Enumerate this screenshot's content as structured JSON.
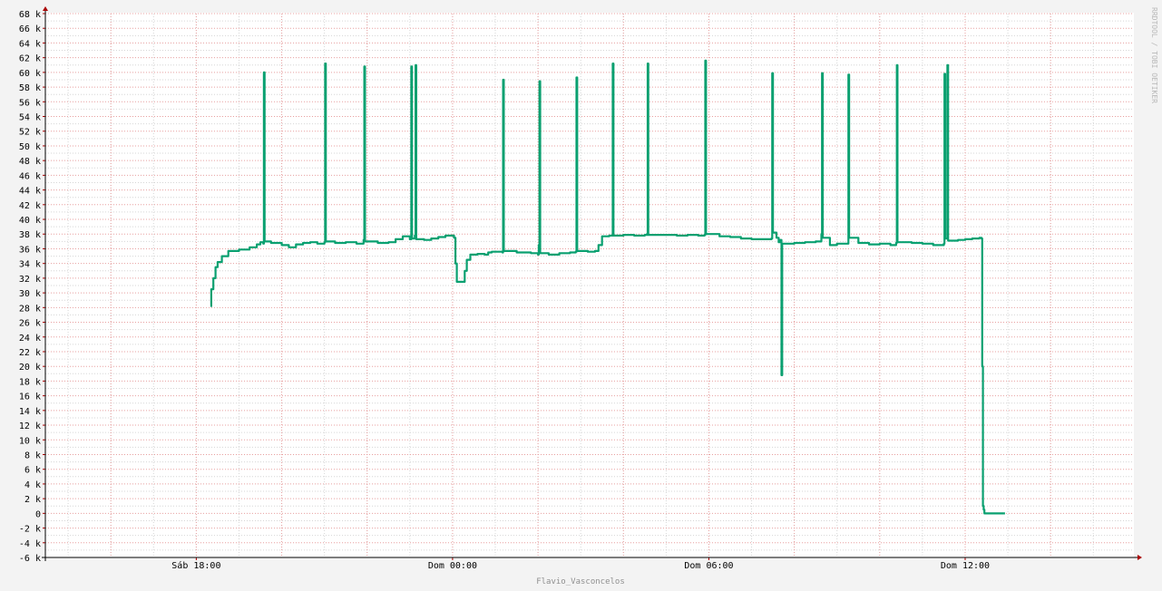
{
  "chart_data": {
    "type": "line",
    "watermark": "RRDTOOL / TOBI OETIKER",
    "footer": "Flavio_Vasconcelos",
    "ylim": [
      -6000,
      68000
    ],
    "yticks": [
      {
        "value": -6000,
        "label": "-6 k"
      },
      {
        "value": -4000,
        "label": "-4 k"
      },
      {
        "value": -2000,
        "label": "-2 k"
      },
      {
        "value": 0,
        "label": "0"
      },
      {
        "value": 2000,
        "label": "2 k"
      },
      {
        "value": 4000,
        "label": "4 k"
      },
      {
        "value": 6000,
        "label": "6 k"
      },
      {
        "value": 8000,
        "label": "8 k"
      },
      {
        "value": 10000,
        "label": "10 k"
      },
      {
        "value": 12000,
        "label": "12 k"
      },
      {
        "value": 14000,
        "label": "14 k"
      },
      {
        "value": 16000,
        "label": "16 k"
      },
      {
        "value": 18000,
        "label": "18 k"
      },
      {
        "value": 20000,
        "label": "20 k"
      },
      {
        "value": 22000,
        "label": "22 k"
      },
      {
        "value": 24000,
        "label": "24 k"
      },
      {
        "value": 26000,
        "label": "26 k"
      },
      {
        "value": 28000,
        "label": "28 k"
      },
      {
        "value": 30000,
        "label": "30 k"
      },
      {
        "value": 32000,
        "label": "32 k"
      },
      {
        "value": 34000,
        "label": "34 k"
      },
      {
        "value": 36000,
        "label": "36 k"
      },
      {
        "value": 38000,
        "label": "38 k"
      },
      {
        "value": 40000,
        "label": "40 k"
      },
      {
        "value": 42000,
        "label": "42 k"
      },
      {
        "value": 44000,
        "label": "44 k"
      },
      {
        "value": 46000,
        "label": "46 k"
      },
      {
        "value": 48000,
        "label": "48 k"
      },
      {
        "value": 50000,
        "label": "50 k"
      },
      {
        "value": 52000,
        "label": "52 k"
      },
      {
        "value": 54000,
        "label": "54 k"
      },
      {
        "value": 56000,
        "label": "56 k"
      },
      {
        "value": 58000,
        "label": "58 k"
      },
      {
        "value": 60000,
        "label": "60 k"
      },
      {
        "value": 62000,
        "label": "62 k"
      },
      {
        "value": 64000,
        "label": "64 k"
      },
      {
        "value": 66000,
        "label": "66 k"
      },
      {
        "value": 68000,
        "label": "68 k"
      }
    ],
    "xlim": [
      "Sáb 13:88",
      "Dom 15:57"
    ],
    "xticks": [
      {
        "value": "Sáb 18:00",
        "label": "Sáb 18:00"
      },
      {
        "value": "Dom 00:00",
        "label": "Dom 00:00"
      },
      {
        "value": "Dom 06:00",
        "label": "Dom 06:00"
      },
      {
        "value": "Dom 12:00",
        "label": "Dom 12:00"
      }
    ],
    "minor_grid_hours": 1,
    "major_grid_hours": 2,
    "grid": true,
    "series": [
      {
        "color": "#0aa070",
        "points": [
          [
            "Sáb 18:20",
            28200
          ],
          [
            "Sáb 18:21",
            30500
          ],
          [
            "Sáb 18:24",
            32000
          ],
          [
            "Sáb 18:27",
            33500
          ],
          [
            "Sáb 18:30",
            34200
          ],
          [
            "Sáb 18:36",
            35000
          ],
          [
            "Sáb 18:45",
            35700
          ],
          [
            "Sáb 19:00",
            35900
          ],
          [
            "Sáb 19:15",
            36200
          ],
          [
            "Sáb 19:25",
            36600
          ],
          [
            "Sáb 19:30",
            36900
          ],
          [
            "Sáb 19:34",
            36700
          ],
          [
            "Sáb 19:35",
            60000
          ],
          [
            "Sáb 19:36",
            37000
          ],
          [
            "Sáb 19:45",
            36800
          ],
          [
            "Sáb 20:00",
            36500
          ],
          [
            "Sáb 20:10",
            36200
          ],
          [
            "Sáb 20:20",
            36600
          ],
          [
            "Sáb 20:30",
            36800
          ],
          [
            "Sáb 20:40",
            36900
          ],
          [
            "Sáb 20:50",
            36700
          ],
          [
            "Sáb 21:00",
            36900
          ],
          [
            "Sáb 21:01",
            61200
          ],
          [
            "Sáb 21:02",
            37000
          ],
          [
            "Sáb 21:15",
            36800
          ],
          [
            "Sáb 21:30",
            36900
          ],
          [
            "Sáb 21:45",
            36700
          ],
          [
            "Sáb 21:55",
            37200
          ],
          [
            "Sáb 21:56",
            60800
          ],
          [
            "Sáb 21:57",
            37000
          ],
          [
            "Sáb 22:15",
            36800
          ],
          [
            "Sáb 22:30",
            36900
          ],
          [
            "Sáb 22:40",
            37300
          ],
          [
            "Sáb 22:50",
            37700
          ],
          [
            "Sáb 23:00",
            37300
          ],
          [
            "Sáb 23:02",
            60800
          ],
          [
            "Sáb 23:03",
            37400
          ],
          [
            "Sáb 23:07",
            37800
          ],
          [
            "Sáb 23:08",
            61000
          ],
          [
            "Sáb 23:09",
            37300
          ],
          [
            "Sáb 23:20",
            37200
          ],
          [
            "Sáb 23:30",
            37400
          ],
          [
            "Sáb 23:40",
            37600
          ],
          [
            "Sáb 23:50",
            37800
          ],
          [
            "Dom 00:00",
            37800
          ],
          [
            "Dom 00:02",
            37500
          ],
          [
            "Dom 00:04",
            34000
          ],
          [
            "Dom 00:06",
            31500
          ],
          [
            "Dom 00:15",
            31500
          ],
          [
            "Dom 00:17",
            33000
          ],
          [
            "Dom 00:20",
            34500
          ],
          [
            "Dom 00:25",
            35200
          ],
          [
            "Dom 00:35",
            35300
          ],
          [
            "Dom 00:45",
            35200
          ],
          [
            "Dom 00:50",
            35500
          ],
          [
            "Dom 00:55",
            35600
          ],
          [
            "Dom 01:10",
            35500
          ],
          [
            "Dom 01:11",
            59000
          ],
          [
            "Dom 01:12",
            35700
          ],
          [
            "Dom 01:30",
            35500
          ],
          [
            "Dom 01:50",
            35400
          ],
          [
            "Dom 02:00",
            35200
          ],
          [
            "Dom 02:01",
            36500
          ],
          [
            "Dom 02:02",
            58800
          ],
          [
            "Dom 02:03",
            35400
          ],
          [
            "Dom 02:15",
            35200
          ],
          [
            "Dom 02:30",
            35400
          ],
          [
            "Dom 02:45",
            35500
          ],
          [
            "Dom 02:53",
            35600
          ],
          [
            "Dom 02:54",
            59300
          ],
          [
            "Dom 02:55",
            35700
          ],
          [
            "Dom 03:10",
            35600
          ],
          [
            "Dom 03:20",
            35700
          ],
          [
            "Dom 03:25",
            36500
          ],
          [
            "Dom 03:30",
            37700
          ],
          [
            "Dom 03:40",
            37800
          ],
          [
            "Dom 03:44",
            37800
          ],
          [
            "Dom 03:45",
            61200
          ],
          [
            "Dom 03:46",
            37800
          ],
          [
            "Dom 04:00",
            37900
          ],
          [
            "Dom 04:15",
            37800
          ],
          [
            "Dom 04:30",
            37900
          ],
          [
            "Dom 04:33",
            38000
          ],
          [
            "Dom 04:34",
            61200
          ],
          [
            "Dom 04:35",
            37900
          ],
          [
            "Dom 05:00",
            37900
          ],
          [
            "Dom 05:15",
            37800
          ],
          [
            "Dom 05:30",
            37900
          ],
          [
            "Dom 05:45",
            37800
          ],
          [
            "Dom 05:54",
            37900
          ],
          [
            "Dom 05:55",
            61600
          ],
          [
            "Dom 05:56",
            38000
          ],
          [
            "Dom 06:15",
            37700
          ],
          [
            "Dom 06:30",
            37600
          ],
          [
            "Dom 06:45",
            37400
          ],
          [
            "Dom 07:00",
            37300
          ],
          [
            "Dom 07:15",
            37300
          ],
          [
            "Dom 07:28",
            37400
          ],
          [
            "Dom 07:29",
            59900
          ],
          [
            "Dom 07:30",
            38200
          ],
          [
            "Dom 07:35",
            37500
          ],
          [
            "Dom 07:38",
            36900
          ],
          [
            "Dom 07:40",
            37200
          ],
          [
            "Dom 07:42",
            18800
          ],
          [
            "Dom 07:43",
            36700
          ],
          [
            "Dom 08:00",
            36800
          ],
          [
            "Dom 08:15",
            36900
          ],
          [
            "Dom 08:30",
            37000
          ],
          [
            "Dom 08:38",
            38000
          ],
          [
            "Dom 08:39",
            59900
          ],
          [
            "Dom 08:40",
            37500
          ],
          [
            "Dom 08:50",
            36500
          ],
          [
            "Dom 09:00",
            36700
          ],
          [
            "Dom 09:15",
            36700
          ],
          [
            "Dom 09:16",
            59700
          ],
          [
            "Dom 09:17",
            37500
          ],
          [
            "Dom 09:30",
            36800
          ],
          [
            "Dom 09:45",
            36600
          ],
          [
            "Dom 10:00",
            36700
          ],
          [
            "Dom 10:15",
            36500
          ],
          [
            "Dom 10:23",
            36800
          ],
          [
            "Dom 10:24",
            61000
          ],
          [
            "Dom 10:25",
            36900
          ],
          [
            "Dom 10:45",
            36800
          ],
          [
            "Dom 11:00",
            36700
          ],
          [
            "Dom 11:15",
            36500
          ],
          [
            "Dom 11:30",
            36700
          ],
          [
            "Dom 11:31",
            59800
          ],
          [
            "Dom 11:32",
            37400
          ],
          [
            "Dom 11:35",
            61000
          ],
          [
            "Dom 11:36",
            37100
          ],
          [
            "Dom 11:50",
            37200
          ],
          [
            "Dom 12:00",
            37300
          ],
          [
            "Dom 12:10",
            37400
          ],
          [
            "Dom 12:20",
            37500
          ],
          [
            "Dom 12:23",
            37400
          ],
          [
            "Dom 12:24",
            20000
          ],
          [
            "Dom 12:25",
            1000
          ],
          [
            "Dom 12:26",
            500
          ],
          [
            "Dom 12:27",
            0
          ],
          [
            "Dom 12:56",
            0
          ]
        ]
      }
    ]
  }
}
